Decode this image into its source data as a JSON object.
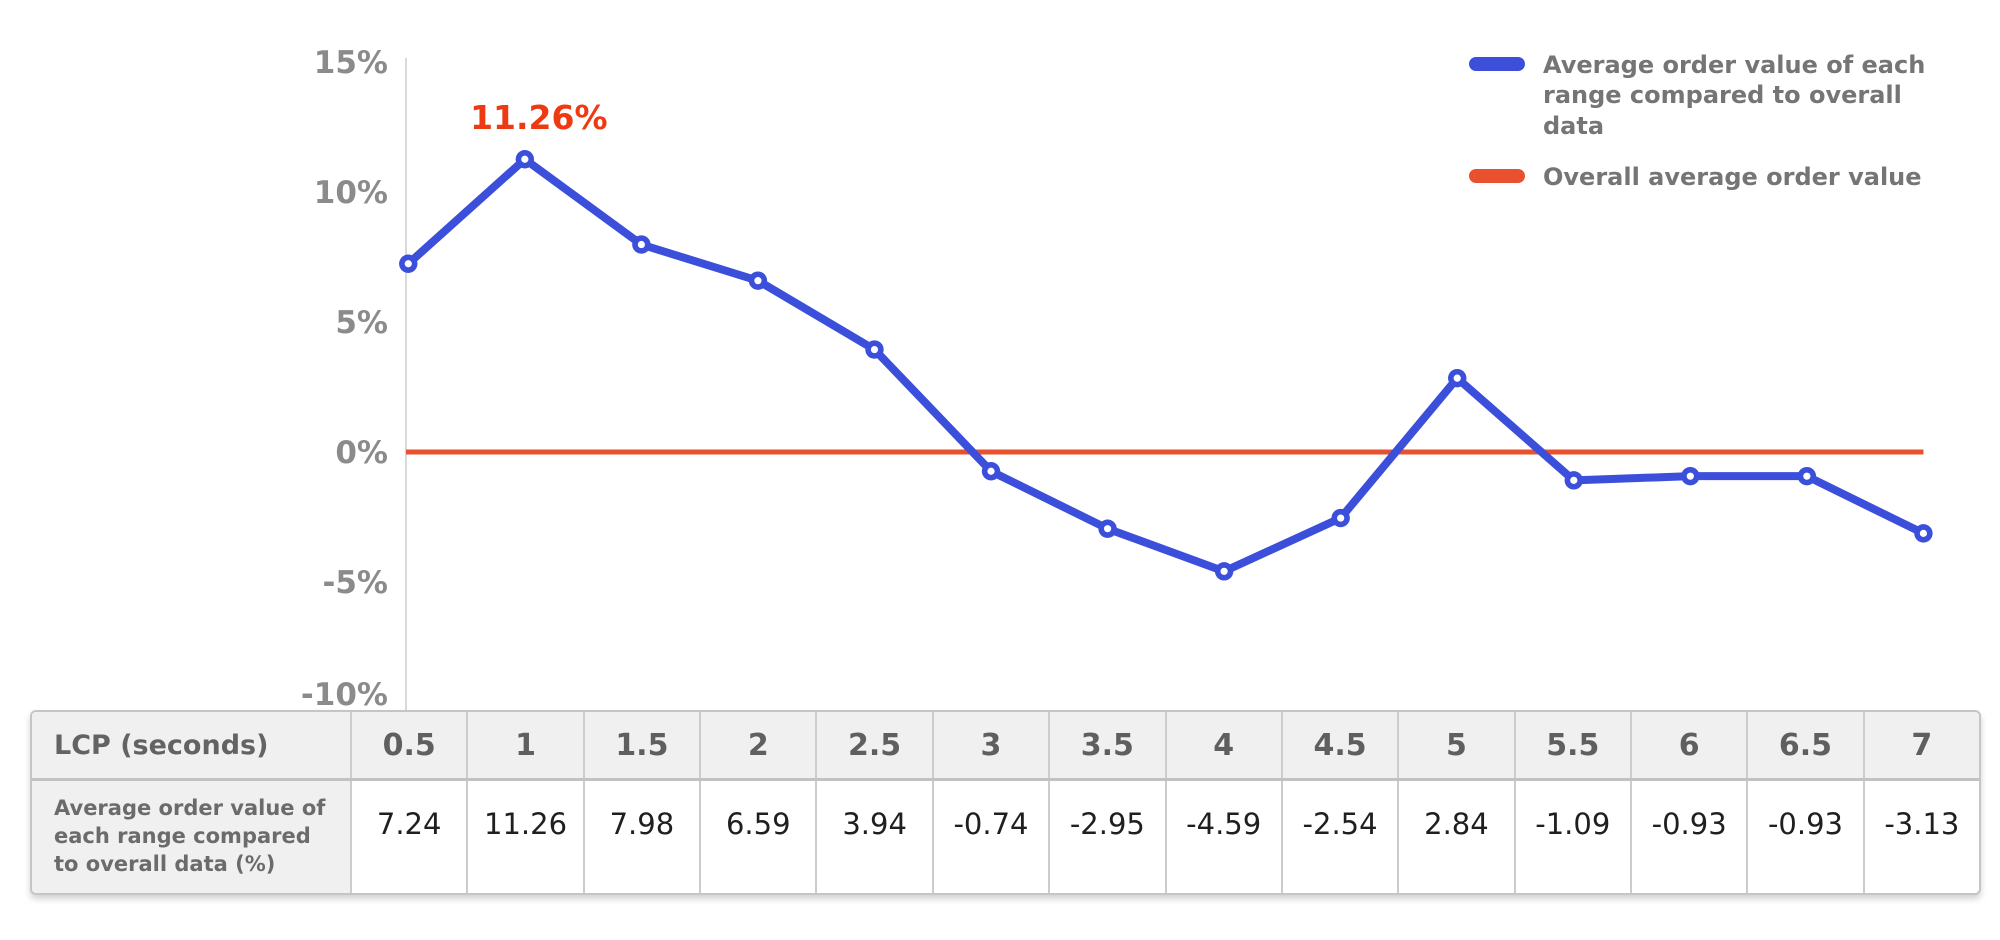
{
  "chart_data": {
    "type": "line",
    "title": "",
    "x_label": "LCP (seconds)",
    "x": [
      0.5,
      1,
      1.5,
      2,
      2.5,
      3,
      3.5,
      4,
      4.5,
      5,
      5.5,
      6,
      6.5,
      7
    ],
    "series": [
      {
        "name": "Average order value of each range compared to overall data",
        "style": "line-with-markers",
        "color": "#3b4fdb",
        "values": [
          7.24,
          11.26,
          7.98,
          6.59,
          3.94,
          -0.74,
          -2.95,
          -4.59,
          -2.54,
          2.84,
          -1.09,
          -0.93,
          -0.93,
          -3.13
        ]
      },
      {
        "name": "Overall average order value",
        "style": "reference-line",
        "color": "#e8502e",
        "value": 0
      }
    ],
    "annotation": {
      "text": "11.26%",
      "color": "#ee3a12",
      "series": 0,
      "x_index": 1
    },
    "y_axis": {
      "min": -10,
      "max": 15,
      "unit": "%",
      "ticks": [
        15,
        10,
        5,
        0,
        -5,
        -10
      ],
      "tick_labels": [
        "15%",
        "10%",
        "5%",
        "0%",
        "-5%",
        "-10%"
      ]
    },
    "grid": false,
    "legend_position": "top-right"
  },
  "legend": {
    "items": [
      {
        "label": "Average order value of each range compared to overall data",
        "color": "#3b4fdb"
      },
      {
        "label": "Overall average order value",
        "color": "#e8502e"
      }
    ]
  },
  "table": {
    "corner_label": "LCP (seconds)",
    "column_headers": [
      "0.5",
      "1",
      "1.5",
      "2",
      "2.5",
      "3",
      "3.5",
      "4",
      "4.5",
      "5",
      "5.5",
      "6",
      "6.5",
      "7"
    ],
    "rows": [
      {
        "label": "Average order value of each range compared to overall data (%)",
        "values": [
          "7.24",
          "11.26",
          "7.98",
          "6.59",
          "3.94",
          "-0.74",
          "-2.95",
          "-4.59",
          "-2.54",
          "2.84",
          "-1.09",
          "-0.93",
          "-0.93",
          "-3.13"
        ]
      }
    ]
  },
  "colors": {
    "series_blue": "#3b4fdb",
    "series_red": "#e8502e",
    "annotation_red": "#ee3a12",
    "axis_text": "#8b8b8b",
    "axis_line": "#d9d9d9",
    "legend_text": "#757575",
    "table_border": "#c5c5c5",
    "table_label_bg": "#f0f0f0"
  }
}
